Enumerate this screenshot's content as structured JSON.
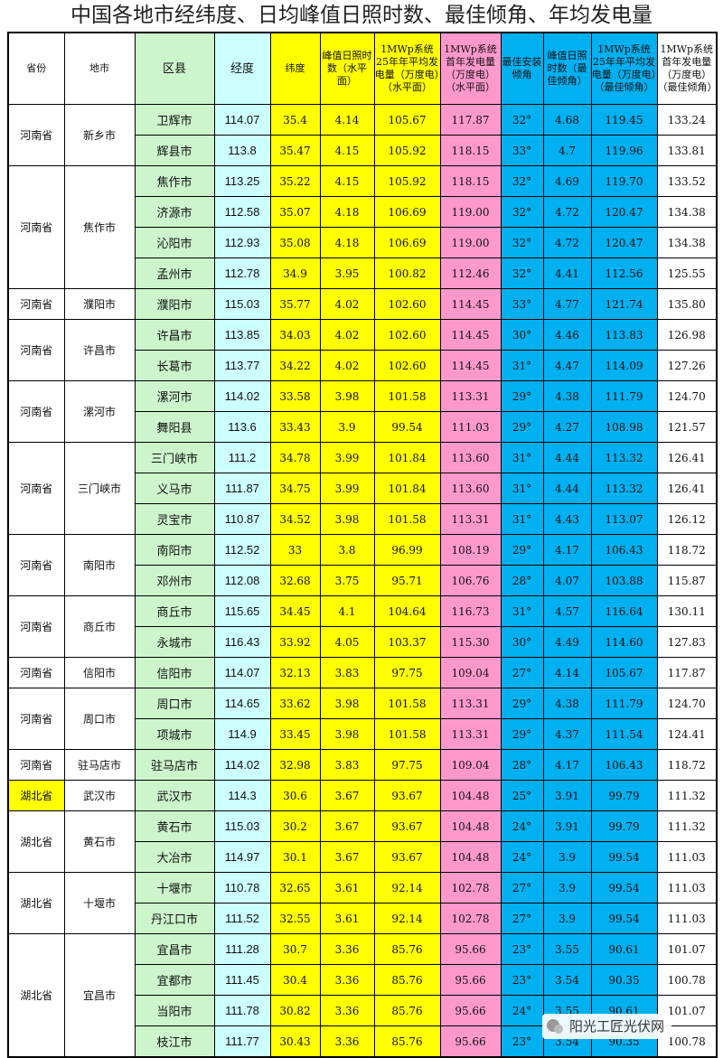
{
  "title": "中国各地市经纬度、日均峰值日照时数、最佳倾角、年均发电量",
  "header": [
    "省份",
    "地市",
    "区县",
    "经度",
    "纬度",
    "峰值日照时数（水平面）",
    "1MWp系统25年年平均发电量（万度电）（水平面）",
    "1MWp系统首年发电量（万度电）（水平面）",
    "最佳安装倾角",
    "峰值日照时数（最佳倾角）",
    "1MWp系统25年年平均发电量（万度电）（最佳倾角）",
    "1MWp系统首年发电量（万度电）（最佳倾角）"
  ],
  "groups": [
    {
      "province": "河南省",
      "city": "新乡市",
      "rows": [
        [
          "卫辉市",
          "114.07",
          "35.4",
          "4.14",
          "105.67",
          "117.87",
          "32°",
          "4.68",
          "119.45",
          "133.24"
        ],
        [
          "辉县市",
          "113.8",
          "35.47",
          "4.15",
          "105.92",
          "118.15",
          "33°",
          "4.7",
          "119.96",
          "133.81"
        ]
      ]
    },
    {
      "province": "河南省",
      "city": "焦作市",
      "rows": [
        [
          "焦作市",
          "113.25",
          "35.22",
          "4.15",
          "105.92",
          "118.15",
          "32°",
          "4.69",
          "119.70",
          "133.52"
        ],
        [
          "济源市",
          "112.58",
          "35.07",
          "4.18",
          "106.69",
          "119.00",
          "32°",
          "4.72",
          "120.47",
          "134.38"
        ],
        [
          "沁阳市",
          "112.93",
          "35.08",
          "4.18",
          "106.69",
          "119.00",
          "32°",
          "4.72",
          "120.47",
          "134.38"
        ],
        [
          "孟州市",
          "112.78",
          "34.9",
          "3.95",
          "100.82",
          "112.46",
          "32°",
          "4.41",
          "112.56",
          "125.55"
        ]
      ]
    },
    {
      "province": "河南省",
      "city": "濮阳市",
      "rows": [
        [
          "濮阳市",
          "115.03",
          "35.77",
          "4.02",
          "102.60",
          "114.45",
          "33°",
          "4.77",
          "121.74",
          "135.80"
        ]
      ]
    },
    {
      "province": "河南省",
      "city": "许昌市",
      "rows": [
        [
          "许昌市",
          "113.85",
          "34.03",
          "4.02",
          "102.60",
          "114.45",
          "30°",
          "4.46",
          "113.83",
          "126.98"
        ],
        [
          "长葛市",
          "113.77",
          "34.22",
          "4.02",
          "102.60",
          "114.45",
          "31°",
          "4.47",
          "114.09",
          "127.26"
        ]
      ]
    },
    {
      "province": "河南省",
      "city": "漯河市",
      "rows": [
        [
          "漯河市",
          "114.02",
          "33.58",
          "3.98",
          "101.58",
          "113.31",
          "29°",
          "4.38",
          "111.79",
          "124.70"
        ],
        [
          "舞阳县",
          "113.6",
          "33.43",
          "3.9",
          "99.54",
          "111.03",
          "29°",
          "4.27",
          "108.98",
          "121.57"
        ]
      ]
    },
    {
      "province": "河南省",
      "city": "三门峡市",
      "rows": [
        [
          "三门峡市",
          "111.2",
          "34.78",
          "3.99",
          "101.84",
          "113.60",
          "31°",
          "4.44",
          "113.32",
          "126.41"
        ],
        [
          "义马市",
          "111.87",
          "34.75",
          "3.99",
          "101.84",
          "113.60",
          "31°",
          "4.44",
          "113.32",
          "126.41"
        ],
        [
          "灵宝市",
          "110.87",
          "34.52",
          "3.98",
          "101.58",
          "113.31",
          "31°",
          "4.43",
          "113.07",
          "126.12"
        ]
      ]
    },
    {
      "province": "河南省",
      "city": "南阳市",
      "rows": [
        [
          "南阳市",
          "112.52",
          "33",
          "3.8",
          "96.99",
          "108.19",
          "29°",
          "4.17",
          "106.43",
          "118.72"
        ],
        [
          "邓州市",
          "112.08",
          "32.68",
          "3.75",
          "95.71",
          "106.76",
          "28°",
          "4.07",
          "103.88",
          "115.87"
        ]
      ]
    },
    {
      "province": "河南省",
      "city": "商丘市",
      "rows": [
        [
          "商丘市",
          "115.65",
          "34.45",
          "4.1",
          "104.64",
          "116.73",
          "31°",
          "4.57",
          "116.64",
          "130.11"
        ],
        [
          "永城市",
          "116.43",
          "33.92",
          "4.05",
          "103.37",
          "115.30",
          "30°",
          "4.49",
          "114.60",
          "127.83"
        ]
      ]
    },
    {
      "province": "河南省",
      "city": "信阳市",
      "rows": [
        [
          "信阳市",
          "114.07",
          "32.13",
          "3.83",
          "97.75",
          "109.04",
          "27°",
          "4.14",
          "105.67",
          "117.87"
        ]
      ]
    },
    {
      "province": "河南省",
      "city": "周口市",
      "rows": [
        [
          "周口市",
          "114.65",
          "33.62",
          "3.98",
          "101.58",
          "113.31",
          "29°",
          "4.38",
          "111.79",
          "124.70"
        ],
        [
          "项城市",
          "114.9",
          "33.45",
          "3.98",
          "101.58",
          "113.31",
          "29°",
          "4.37",
          "111.54",
          "124.41"
        ]
      ]
    },
    {
      "province": "河南省",
      "city": "驻马店市",
      "rows": [
        [
          "驻马店市",
          "114.02",
          "32.98",
          "3.83",
          "97.75",
          "109.04",
          "28°",
          "4.17",
          "106.43",
          "118.72"
        ]
      ]
    },
    {
      "province": "湖北省",
      "city": "武汉市",
      "highlight": true,
      "rows": [
        [
          "武汉市",
          "114.3",
          "30.6",
          "3.67",
          "93.67",
          "104.48",
          "25°",
          "3.91",
          "99.79",
          "111.32"
        ]
      ]
    },
    {
      "province": "湖北省",
      "city": "黄石市",
      "rows": [
        [
          "黄石市",
          "115.03",
          "30.2",
          "3.67",
          "93.67",
          "104.48",
          "24°",
          "3.91",
          "99.79",
          "111.32"
        ],
        [
          "大冶市",
          "114.97",
          "30.1",
          "3.67",
          "93.67",
          "104.48",
          "24°",
          "3.9",
          "99.54",
          "111.03"
        ]
      ]
    },
    {
      "province": "湖北省",
      "city": "十堰市",
      "rows": [
        [
          "十堰市",
          "110.78",
          "32.65",
          "3.61",
          "92.14",
          "102.78",
          "27°",
          "3.9",
          "99.54",
          "111.03"
        ],
        [
          "丹江口市",
          "111.52",
          "32.55",
          "3.61",
          "92.14",
          "102.78",
          "27°",
          "3.9",
          "99.54",
          "111.03"
        ]
      ]
    },
    {
      "province": "湖北省",
      "city": "宜昌市",
      "rows": [
        [
          "宜昌市",
          "111.28",
          "30.7",
          "3.36",
          "85.76",
          "95.66",
          "23°",
          "3.55",
          "90.61",
          "101.07"
        ],
        [
          "宜都市",
          "111.45",
          "30.4",
          "3.36",
          "85.76",
          "95.66",
          "23°",
          "3.54",
          "90.35",
          "100.78"
        ],
        [
          "当阳市",
          "111.78",
          "30.82",
          "3.36",
          "85.76",
          "95.66",
          "24°",
          "3.55",
          "90.61",
          "101.07"
        ],
        [
          "枝江市",
          "111.77",
          "30.43",
          "3.36",
          "85.76",
          "95.66",
          "23°",
          "3.54",
          "90.35",
          "100.78"
        ]
      ]
    }
  ],
  "watermark": "阳光工匠光伏网"
}
